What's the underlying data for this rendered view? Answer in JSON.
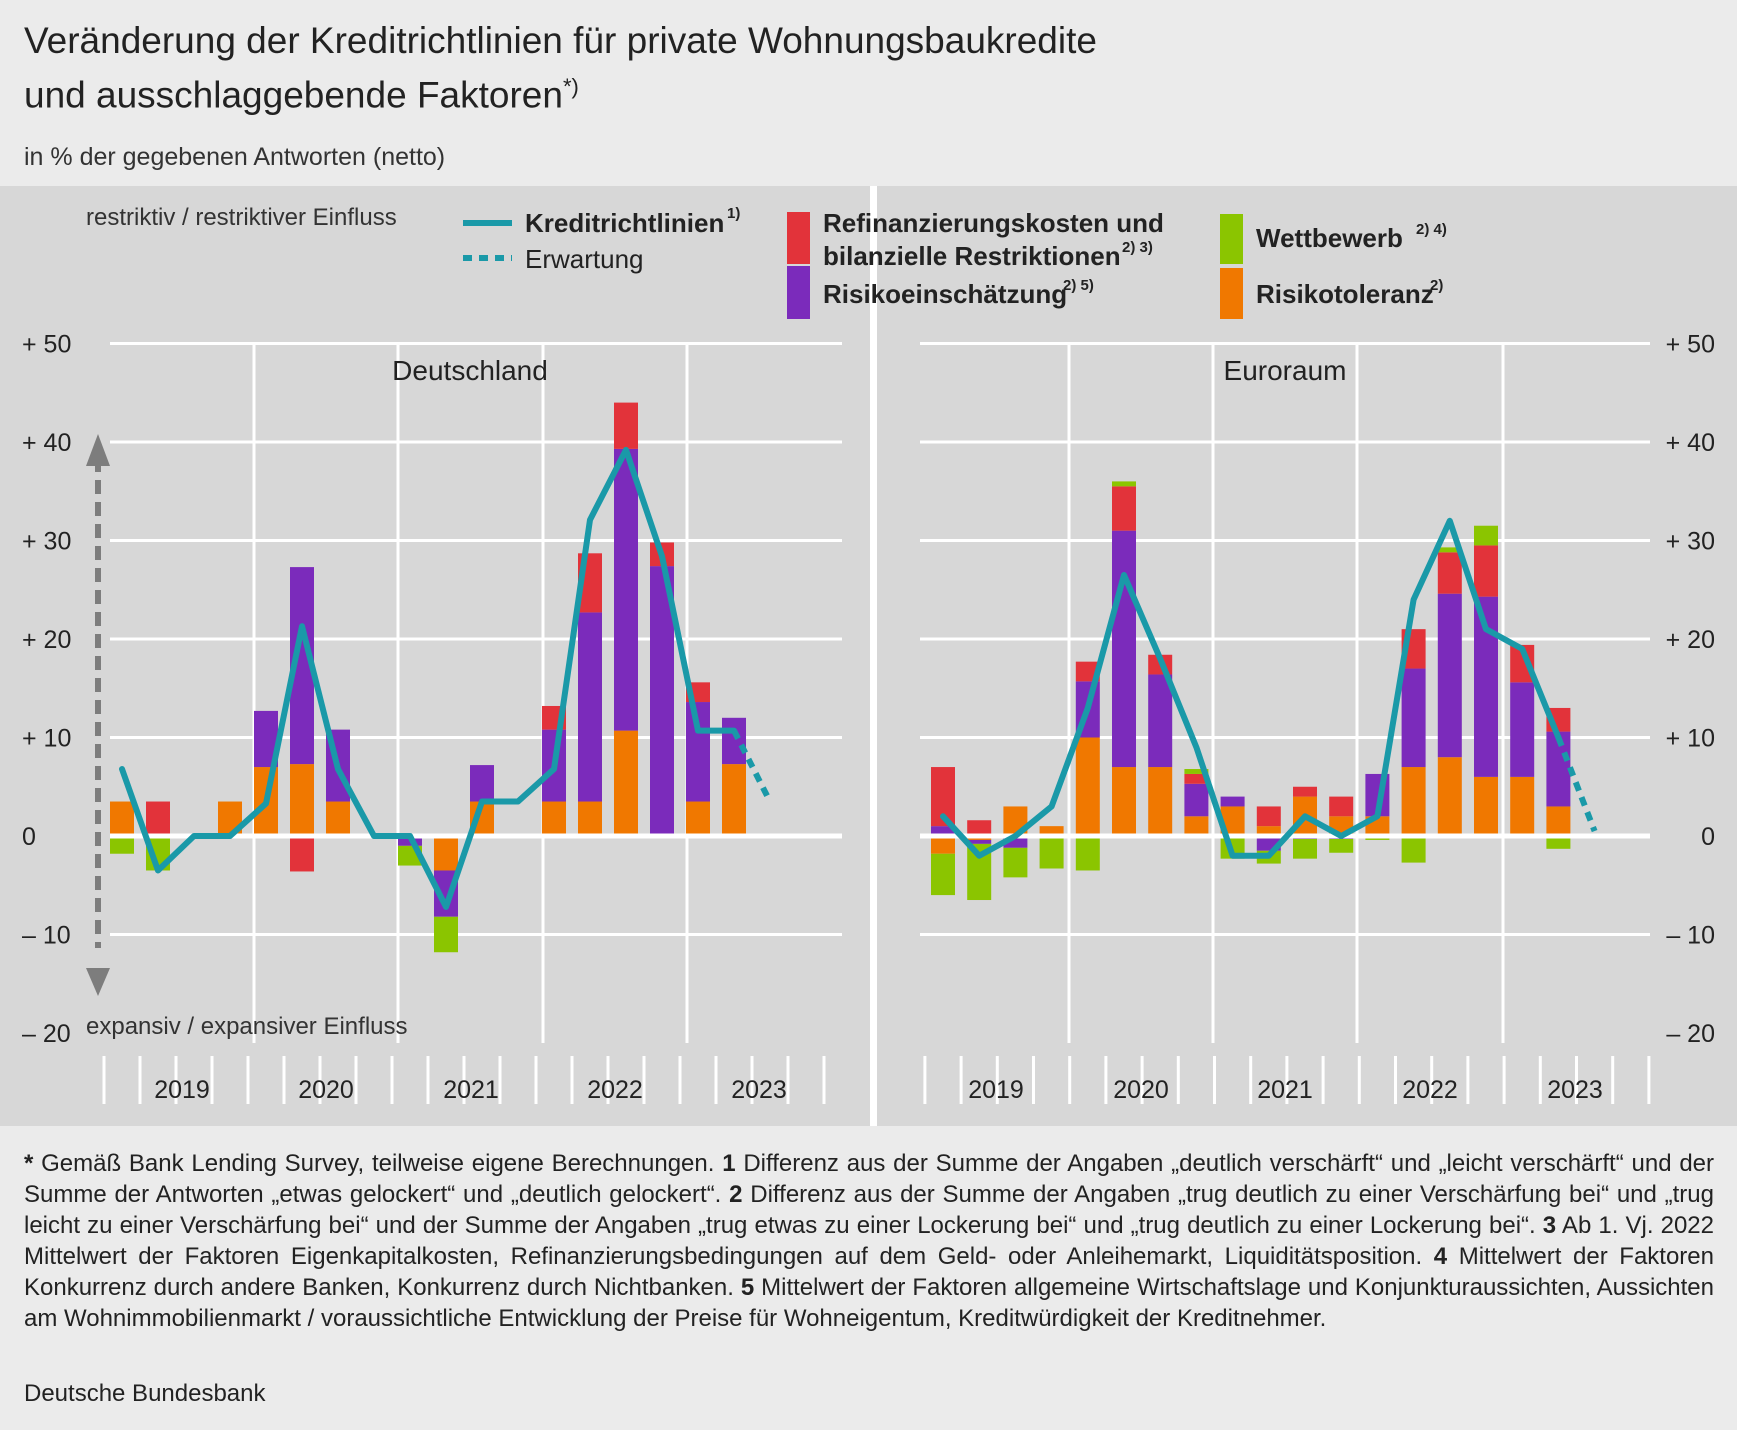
{
  "title_line1": "Veränderung der Kreditrichtlinien für private Wohnungsbaukredite",
  "title_line2": "und ausschlaggebende Faktoren",
  "title_sup": "*)",
  "subtitle": "in % der gegebenen Antworten (netto)",
  "footnotes": [
    {
      "mark": "*",
      "text": " Gemäß Bank Lending Survey, teilweise eigene Berechnungen. "
    },
    {
      "mark": "1",
      "text": " Differenz aus der Summe der Angaben „deutlich verschärft“ und „leicht verschärft“ und der Summe der Antworten „etwas gelockert“ und „deutlich gelockert“. "
    },
    {
      "mark": "2",
      "text": " Differenz aus der Summe der Angaben „trug deutlich zu einer Verschärfung bei“ und „trug leicht zu einer Verschärfung bei“ und der Summe der Angaben „trug etwas zu einer Lockerung bei“ und „trug deutlich zu einer Lockerung bei“. "
    },
    {
      "mark": "3",
      "text": " Ab 1. Vj. 2022 Mittelwert der Faktoren Eigenkapitalkosten, Refinanzierungsbedingungen auf dem Geld- oder Anleihemarkt, Liquiditätsposition. "
    },
    {
      "mark": "4",
      "text": " Mittelwert der Faktoren Konkurrenz durch andere Banken, Konkurrenz durch Nichtbanken. "
    },
    {
      "mark": "5",
      "text": " Mittelwert der Faktoren allgemeine Wirtschaftslage und Konjunkturaussichten, Aussichten am Wohnimmobilienmarkt / voraussichtliche Entwicklung der Preise für Wohneigentum, Kreditwürdigkeit der Kreditnehmer."
    }
  ],
  "source": "Deutsche Bundesbank",
  "chart_data": {
    "type": "bar",
    "stacked": true,
    "overlay_line": "Kreditrichtlinien",
    "ylim": [
      -20,
      50
    ],
    "y_ticks": [
      50,
      40,
      30,
      20,
      10,
      0,
      -10,
      -20
    ],
    "y_tick_labels": [
      "+ 50",
      "+ 40",
      "+ 30",
      "+ 20",
      "+ 10",
      "0",
      "– 10",
      "– 20"
    ],
    "arrow_top_label": "restriktiv / restriktiver Einfluss",
    "arrow_bottom_label": "expansiv / expansiver Einfluss",
    "years": [
      "2019",
      "2020",
      "2021",
      "2022",
      "2023"
    ],
    "legend": {
      "line": {
        "label": "Kreditrichtlinien",
        "sup": "1)",
        "color": "#1a99a8"
      },
      "expectation": {
        "label": "Erwartung"
      },
      "refinanzierung": {
        "label_line1": "Refinanzierungskosten und",
        "label_line2": "bilanzielle Restriktionen",
        "sup": "2) 3)",
        "color": "#e2333a"
      },
      "risikoeinschaetzung": {
        "label": "Risikoeinschätzung",
        "sup": "2) 5)",
        "color": "#7b2bbb"
      },
      "wettbewerb": {
        "label": "Wettbewerb",
        "sup": "2) 4)",
        "color": "#8bc500"
      },
      "risikotoleranz": {
        "label": "Risikotoleranz",
        "sup": "2)",
        "color": "#f07800"
      }
    },
    "panels": [
      {
        "name": "Deutschland",
        "quarters": [
          "2019 Q1",
          "2019 Q2",
          "2019 Q3",
          "2019 Q4",
          "2020 Q1",
          "2020 Q2",
          "2020 Q3",
          "2020 Q4",
          "2021 Q1",
          "2021 Q2",
          "2021 Q3",
          "2021 Q4",
          "2022 Q1",
          "2022 Q2",
          "2022 Q3",
          "2022 Q4",
          "2023 Q1",
          "2023 Q2",
          "2023 Q3"
        ],
        "risikotoleranz": [
          3.5,
          0,
          0,
          3.5,
          7,
          7.3,
          3.5,
          0,
          0,
          -3.5,
          3.5,
          0,
          3.5,
          3.5,
          10.7,
          0,
          3.5,
          7.3,
          0
        ],
        "risikoeinschaetzung": [
          0,
          0,
          0,
          0,
          5.7,
          20,
          7.3,
          0,
          -1,
          -4.7,
          3.7,
          0,
          7.3,
          19.2,
          28.6,
          27.4,
          10.1,
          4.7,
          0
        ],
        "refinanzierung": [
          0,
          3.5,
          0,
          0,
          0,
          -3.6,
          0,
          0,
          0,
          0,
          0,
          0,
          2.4,
          6,
          4.7,
          2.4,
          2,
          0,
          0
        ],
        "wettbewerb": [
          -1.8,
          -3.5,
          0,
          0,
          0,
          0,
          0,
          0,
          -2,
          -3.6,
          0,
          0,
          0,
          0,
          0,
          0,
          0,
          0,
          0
        ],
        "kreditrichtlinien": [
          6.8,
          -3.5,
          0,
          0,
          3.3,
          21.3,
          6.8,
          0,
          0,
          -7.2,
          3.5,
          3.5,
          6.8,
          32.1,
          39.2,
          28.4,
          10.7,
          10.7,
          null
        ],
        "erwartung_q3": 3.5
      },
      {
        "name": "Euroraum",
        "quarters": [
          "2019 Q1",
          "2019 Q2",
          "2019 Q3",
          "2019 Q4",
          "2020 Q1",
          "2020 Q2",
          "2020 Q3",
          "2020 Q4",
          "2021 Q1",
          "2021 Q2",
          "2021 Q3",
          "2021 Q4",
          "2022 Q1",
          "2022 Q2",
          "2022 Q3",
          "2022 Q4",
          "2023 Q1",
          "2023 Q2",
          "2023 Q3"
        ],
        "risikotoleranz": [
          -1.8,
          -0.4,
          3,
          1,
          10,
          7,
          7,
          2,
          3,
          1,
          4,
          2,
          2,
          7,
          8,
          6,
          6,
          3,
          0
        ],
        "risikoeinschaetzung": [
          1,
          -0.4,
          -1.2,
          0,
          5.7,
          24,
          9.4,
          3.3,
          1,
          -1.5,
          -0.3,
          -0.3,
          4.3,
          10,
          16.6,
          18.3,
          9.6,
          7.6,
          0
        ],
        "refinanzierung": [
          6,
          1.6,
          0,
          0,
          2,
          4.5,
          2,
          1,
          0,
          2,
          1,
          2,
          0,
          4,
          4.2,
          5.2,
          3.8,
          2.4,
          0
        ],
        "wettbewerb": [
          -4.2,
          -5.7,
          -3,
          -3.3,
          -3.5,
          0.5,
          0,
          0.5,
          -2.3,
          -1.3,
          -2,
          -1.4,
          -0.4,
          -2.7,
          0.5,
          2,
          0,
          -1.3,
          0
        ],
        "kreditrichtlinien": [
          2,
          -2,
          0,
          3,
          13,
          26.5,
          18,
          9,
          -2,
          -2,
          2,
          0,
          2,
          24,
          32,
          21,
          19,
          10,
          null
        ],
        "erwartung_q3": 0.5
      }
    ]
  }
}
